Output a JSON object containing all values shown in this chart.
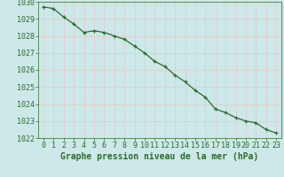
{
  "x": [
    0,
    1,
    2,
    3,
    4,
    5,
    6,
    7,
    8,
    9,
    10,
    11,
    12,
    13,
    14,
    15,
    16,
    17,
    18,
    19,
    20,
    21,
    22,
    23
  ],
  "y": [
    1029.7,
    1029.6,
    1029.1,
    1028.7,
    1028.2,
    1028.3,
    1028.2,
    1028.0,
    1027.8,
    1027.4,
    1027.0,
    1026.5,
    1026.2,
    1025.7,
    1025.3,
    1024.8,
    1024.4,
    1023.7,
    1023.5,
    1023.2,
    1023.0,
    1022.9,
    1022.5,
    1022.3
  ],
  "line_color": "#2d6a2d",
  "marker": "+",
  "marker_size": 3.5,
  "line_width": 0.9,
  "bg_color": "#cce8e8",
  "grid_color": "#e8c8c8",
  "text_color": "#2d6a2d",
  "xlabel": "Graphe pression niveau de la mer (hPa)",
  "ylim": [
    1022,
    1030
  ],
  "yticks": [
    1022,
    1023,
    1024,
    1025,
    1026,
    1027,
    1028,
    1029,
    1030
  ],
  "xticks": [
    0,
    1,
    2,
    3,
    4,
    5,
    6,
    7,
    8,
    9,
    10,
    11,
    12,
    13,
    14,
    15,
    16,
    17,
    18,
    19,
    20,
    21,
    22,
    23
  ],
  "xlabel_fontsize": 7,
  "tick_fontsize": 6,
  "tick_color": "#2d6a2d"
}
